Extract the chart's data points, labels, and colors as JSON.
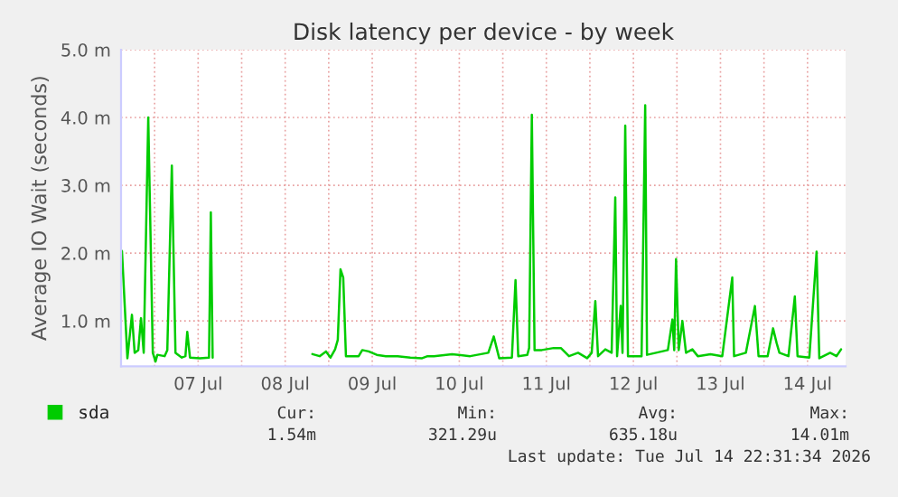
{
  "chart_data": {
    "type": "line",
    "title": "Disk latency per device - by week",
    "ylabel": "Average IO Wait (seconds)",
    "x": [
      "2026-07-06T15:00",
      "2026-07-06T16:30",
      "2026-07-06T17:45",
      "2026-07-06T18:30",
      "2026-07-06T19:30",
      "2026-07-06T20:15",
      "2026-07-06T21:00",
      "2026-07-06T22:15",
      "2026-07-06T23:30",
      "2026-07-07T00:15",
      "2026-07-07T00:45",
      "2026-07-07T02:45",
      "2026-07-07T03:30",
      "2026-07-07T04:45",
      "2026-07-07T05:45",
      "2026-07-07T07:30",
      "2026-07-07T08:30",
      "2026-07-07T09:00",
      "2026-07-07T09:45",
      "2026-07-07T12:30",
      "2026-07-07T15:00",
      "2026-07-07T15:30",
      "2026-07-07T16:00",
      "2026-07-07T17:00",
      "2026-07-08T19:30",
      "2026-07-08T21:30",
      "2026-07-08T23:15",
      "2026-07-09T00:30",
      "2026-07-09T01:45",
      "2026-07-09T02:30",
      "2026-07-09T03:15",
      "2026-07-09T04:00",
      "2026-07-09T04:45",
      "2026-07-09T08:15",
      "2026-07-09T09:15",
      "2026-07-09T11:00",
      "2026-07-09T13:15",
      "2026-07-09T15:45",
      "2026-07-09T19:00",
      "2026-07-09T22:30",
      "2026-07-10T01:45",
      "2026-07-10T03:15",
      "2026-07-10T05:00",
      "2026-07-10T10:00",
      "2026-07-10T15:00",
      "2026-07-10T20:00",
      "2026-07-10T21:30",
      "2026-07-10T23:00",
      "2026-07-11T02:30",
      "2026-07-11T03:30",
      "2026-07-11T04:15",
      "2026-07-11T06:45",
      "2026-07-11T07:15",
      "2026-07-11T08:00",
      "2026-07-11T08:45",
      "2026-07-11T10:45",
      "2026-07-11T14:00",
      "2026-07-11T16:00",
      "2026-07-11T18:15",
      "2026-07-11T20:45",
      "2026-07-11T23:15",
      "2026-07-12T00:30",
      "2026-07-12T01:30",
      "2026-07-12T02:15",
      "2026-07-12T04:15",
      "2026-07-12T06:00",
      "2026-07-12T07:00",
      "2026-07-12T07:30",
      "2026-07-12T08:30",
      "2026-07-12T09:00",
      "2026-07-12T09:45",
      "2026-07-12T10:30",
      "2026-07-12T14:15",
      "2026-07-12T15:15",
      "2026-07-12T15:45",
      "2026-07-12T18:15",
      "2026-07-12T21:30",
      "2026-07-12T22:45",
      "2026-07-12T23:15",
      "2026-07-12T23:45",
      "2026-07-13T00:30",
      "2026-07-13T01:30",
      "2026-07-13T02:30",
      "2026-07-13T04:15",
      "2026-07-13T05:45",
      "2026-07-13T09:15",
      "2026-07-13T12:30",
      "2026-07-13T15:15",
      "2026-07-13T15:45",
      "2026-07-13T19:00",
      "2026-07-13T21:30",
      "2026-07-13T22:30",
      "2026-07-14T01:00",
      "2026-07-14T02:30",
      "2026-07-14T03:30",
      "2026-07-14T04:15",
      "2026-07-14T06:45",
      "2026-07-14T08:30",
      "2026-07-14T09:15",
      "2026-07-14T12:30",
      "2026-07-14T14:30",
      "2026-07-14T15:15",
      "2026-07-14T18:15",
      "2026-07-14T20:00",
      "2026-07-14T21:15"
    ],
    "series": [
      {
        "name": "sda",
        "color": "#00cc00",
        "values": [
          2.03,
          0.45,
          1.09,
          0.53,
          0.57,
          1.04,
          0.53,
          4.0,
          0.53,
          0.4,
          0.5,
          0.48,
          0.57,
          3.29,
          0.53,
          0.46,
          0.48,
          0.84,
          0.46,
          0.45,
          0.46,
          2.6,
          0.46,
          null,
          0.51,
          0.48,
          0.55,
          0.46,
          0.58,
          0.72,
          1.76,
          1.64,
          0.48,
          0.48,
          0.57,
          0.55,
          0.5,
          0.48,
          0.48,
          0.46,
          0.45,
          0.48,
          0.48,
          0.51,
          0.48,
          0.53,
          0.77,
          0.45,
          0.46,
          1.6,
          0.48,
          0.5,
          0.6,
          4.04,
          0.57,
          0.57,
          0.6,
          0.6,
          0.48,
          0.53,
          0.45,
          0.53,
          1.29,
          0.48,
          0.58,
          0.53,
          2.82,
          0.48,
          1.22,
          0.53,
          3.88,
          0.48,
          0.48,
          4.18,
          0.5,
          0.53,
          0.57,
          1.02,
          0.57,
          1.91,
          0.57,
          1.0,
          0.53,
          0.58,
          0.48,
          0.51,
          0.48,
          1.64,
          0.48,
          0.53,
          1.22,
          0.48,
          0.48,
          0.89,
          0.67,
          0.53,
          0.48,
          1.36,
          0.48,
          0.46,
          2.02,
          0.45,
          0.53,
          0.48,
          0.58
        ]
      }
    ],
    "xlim": [
      "2026-07-06T14:45",
      "2026-07-14T22:30"
    ],
    "xticks": [
      {
        "value": "2026-07-07T00:00",
        "label": null
      },
      {
        "value": "2026-07-07T12:00",
        "label": "07 Jul"
      },
      {
        "value": "2026-07-08T00:00",
        "label": null
      },
      {
        "value": "2026-07-08T12:00",
        "label": "08 Jul"
      },
      {
        "value": "2026-07-09T00:00",
        "label": null
      },
      {
        "value": "2026-07-09T12:00",
        "label": "09 Jul"
      },
      {
        "value": "2026-07-10T00:00",
        "label": null
      },
      {
        "value": "2026-07-10T12:00",
        "label": "10 Jul"
      },
      {
        "value": "2026-07-11T00:00",
        "label": null
      },
      {
        "value": "2026-07-11T12:00",
        "label": "11 Jul"
      },
      {
        "value": "2026-07-12T00:00",
        "label": null
      },
      {
        "value": "2026-07-12T12:00",
        "label": "12 Jul"
      },
      {
        "value": "2026-07-13T00:00",
        "label": null
      },
      {
        "value": "2026-07-13T12:00",
        "label": "13 Jul"
      },
      {
        "value": "2026-07-14T00:00",
        "label": null
      },
      {
        "value": "2026-07-14T12:00",
        "label": "14 Jul"
      }
    ],
    "ylim": [
      0.33,
      5.0
    ],
    "yticks": [
      {
        "value": 1.0,
        "label": "1.0 m"
      },
      {
        "value": 2.0,
        "label": "2.0 m"
      },
      {
        "value": 3.0,
        "label": "3.0 m"
      },
      {
        "value": 4.0,
        "label": "4.0 m"
      },
      {
        "value": 5.0,
        "label": "5.0 m"
      }
    ],
    "grid": true,
    "legend": "bottom left",
    "annotations": [
      "Cur:",
      "Min:",
      "Avg:",
      "Max:",
      "1.54m",
      "321.29u",
      "635.18u",
      "14.01m",
      "Last update: Tue Jul 14 22:31:34 2026"
    ]
  }
}
